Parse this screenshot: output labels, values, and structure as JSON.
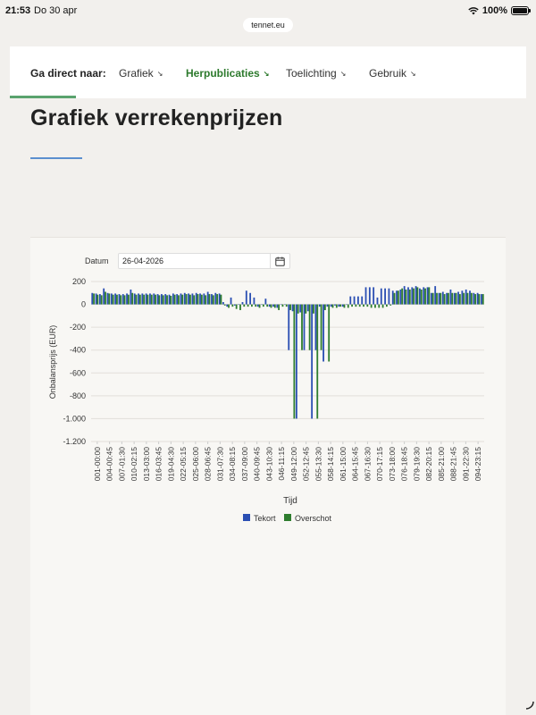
{
  "status": {
    "time": "21:53",
    "date": "Do 30 apr",
    "battery": "100%"
  },
  "url": "tennet.eu",
  "nav": {
    "lead": "Ga direct naar:",
    "items": [
      {
        "label": "Grafiek",
        "active": false
      },
      {
        "label": "Herpublicaties",
        "active": true
      },
      {
        "label": "Toelichting",
        "active": false
      },
      {
        "label": "Gebruik",
        "active": false
      }
    ],
    "arrow": "↘"
  },
  "page": {
    "title": "Grafiek verrekenprijzen"
  },
  "filter": {
    "label": "Datum",
    "value": "26-04-2026"
  },
  "colors": {
    "tekort": "#2b4fb3",
    "overschot": "#2e7d2e",
    "accent": "#2d7a2d"
  },
  "chart_data": {
    "type": "bar",
    "title": "",
    "xlabel": "Tijd",
    "ylabel": "Onbalansprijs (EUR)",
    "ylim": [
      -1200,
      200
    ],
    "yticks": [
      200,
      0,
      -200,
      -400,
      -600,
      -800,
      -1000,
      -1200
    ],
    "ytick_labels": [
      "200",
      "0",
      "-200",
      "-400",
      "-600",
      "-800",
      "-1.000",
      "-1.200"
    ],
    "grid": true,
    "legend": "bottom",
    "xtick_labels": [
      "001-00:00",
      "004-00:45",
      "007-01:30",
      "010-02:15",
      "013-03:00",
      "016-03:45",
      "019-04:30",
      "022-05:15",
      "025-06:00",
      "028-06:45",
      "031-07:30",
      "034-08:15",
      "037-09:00",
      "040-09:45",
      "043-10:30",
      "046-11:15",
      "049-12:00",
      "052-12:45",
      "055-13:30",
      "058-14:15",
      "061-15:00",
      "064-15:45",
      "067-16:30",
      "070-17:15",
      "073-18:00",
      "076-18:45",
      "079-19:30",
      "082-20:15",
      "085-21:00",
      "088-21:45",
      "091-22:30",
      "094-23:15"
    ],
    "series": [
      {
        "name": "Tekort",
        "values": [
          100,
          95,
          90,
          140,
          100,
          95,
          95,
          90,
          90,
          95,
          130,
          95,
          95,
          95,
          95,
          95,
          95,
          90,
          90,
          90,
          85,
          95,
          90,
          95,
          100,
          95,
          95,
          100,
          95,
          95,
          110,
          90,
          100,
          95,
          20,
          -20,
          60,
          -10,
          0,
          20,
          120,
          100,
          60,
          -20,
          0,
          50,
          -20,
          -20,
          -30,
          0,
          0,
          -400,
          -60,
          -1000,
          -70,
          -400,
          -60,
          -1000,
          -400,
          -20,
          -500,
          -20,
          -20,
          -10,
          -20,
          -20,
          0,
          70,
          70,
          70,
          70,
          150,
          150,
          150,
          60,
          140,
          140,
          140,
          120,
          120,
          130,
          160,
          150,
          150,
          160,
          140,
          150,
          150,
          100,
          160,
          100,
          110,
          100,
          130,
          100,
          110,
          120,
          130,
          120,
          100,
          100,
          90
        ]
      },
      {
        "name": "Overschot",
        "values": [
          95,
          85,
          80,
          110,
          95,
          85,
          85,
          80,
          80,
          85,
          100,
          85,
          85,
          85,
          85,
          85,
          85,
          80,
          80,
          80,
          75,
          85,
          80,
          85,
          90,
          85,
          80,
          90,
          85,
          80,
          90,
          80,
          90,
          85,
          -10,
          -30,
          -20,
          -40,
          -50,
          -20,
          -20,
          -20,
          -20,
          -30,
          -20,
          -20,
          -30,
          -30,
          -50,
          -20,
          -20,
          -50,
          -1000,
          -80,
          -400,
          -80,
          -400,
          -80,
          -1000,
          -400,
          -50,
          -500,
          -30,
          -30,
          -20,
          -30,
          -30,
          -20,
          -20,
          -20,
          -20,
          -20,
          -30,
          -30,
          -30,
          -30,
          -20,
          -10,
          100,
          120,
          140,
          130,
          130,
          140,
          150,
          130,
          140,
          150,
          100,
          100,
          100,
          90,
          100,
          100,
          100,
          90,
          100,
          100,
          100,
          90,
          90,
          90
        ]
      }
    ]
  }
}
